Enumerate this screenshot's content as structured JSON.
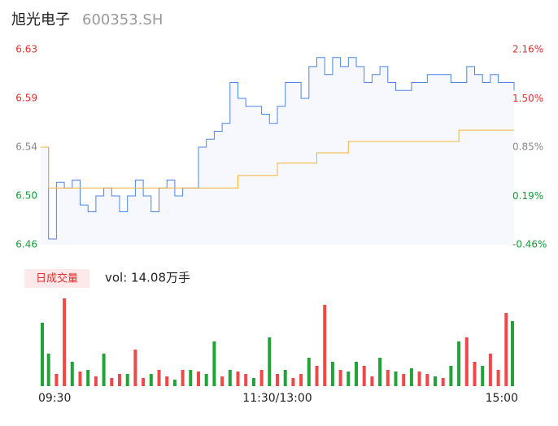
{
  "chart_data": {
    "type": "line",
    "title": "旭光电子",
    "subtitle": "600353.SH",
    "categories": [
      "09:30",
      null,
      null,
      null,
      null,
      null,
      null,
      null,
      null,
      null,
      null,
      null,
      null,
      null,
      null,
      null,
      null,
      null,
      null,
      null,
      null,
      null,
      null,
      null,
      null,
      null,
      null,
      null,
      null,
      null,
      "11:30/13:00",
      null,
      null,
      null,
      null,
      null,
      null,
      null,
      null,
      null,
      null,
      null,
      null,
      null,
      null,
      null,
      null,
      null,
      null,
      null,
      null,
      null,
      null,
      null,
      null,
      null,
      null,
      null,
      null,
      null,
      "15:00"
    ],
    "series": [
      {
        "color": "#4a86e8",
        "values": [
          6.541,
          6.46,
          6.51,
          6.505,
          6.512,
          6.49,
          6.484,
          6.498,
          6.505,
          6.498,
          6.484,
          6.498,
          6.512,
          6.498,
          6.484,
          6.505,
          6.512,
          6.498,
          6.505,
          6.505,
          6.541,
          6.548,
          6.555,
          6.562,
          6.598,
          6.584,
          6.577,
          6.577,
          6.57,
          6.562,
          6.577,
          6.598,
          6.598,
          6.584,
          6.612,
          6.62,
          6.605,
          6.62,
          6.612,
          6.62,
          6.612,
          6.598,
          6.605,
          6.612,
          6.598,
          6.591,
          6.591,
          6.598,
          6.598,
          6.605,
          6.605,
          6.605,
          6.598,
          6.598,
          6.612,
          6.605,
          6.598,
          6.605,
          6.598,
          6.598,
          6.591
        ]
      },
      {
        "color": "#f5b336",
        "values": [
          6.541,
          6.505,
          6.505,
          6.505,
          6.505,
          6.505,
          6.505,
          6.505,
          6.505,
          6.505,
          6.505,
          6.505,
          6.505,
          6.505,
          6.505,
          6.505,
          6.505,
          6.505,
          6.505,
          6.505,
          6.505,
          6.505,
          6.505,
          6.505,
          6.505,
          6.516,
          6.516,
          6.516,
          6.516,
          6.516,
          6.527,
          6.527,
          6.527,
          6.527,
          6.527,
          6.536,
          6.536,
          6.536,
          6.536,
          6.546,
          6.546,
          6.546,
          6.546,
          6.546,
          6.546,
          6.546,
          6.546,
          6.546,
          6.546,
          6.546,
          6.546,
          6.546,
          6.546,
          6.556,
          6.556,
          6.556,
          6.556,
          6.556,
          6.556,
          6.556,
          6.556
        ]
      }
    ],
    "ylim": [
      6.455,
      6.627
    ],
    "yticks": [
      {
        "value": 6.455,
        "label": "6.46"
      },
      {
        "value": 6.498,
        "label": "6.50"
      },
      {
        "value": 6.541,
        "label": "6.54"
      },
      {
        "value": 6.584,
        "label": "6.59"
      },
      {
        "value": 6.627,
        "label": "6.63"
      }
    ],
    "y2lim": [
      -0.46,
      2.16
    ],
    "y2ticks": [
      {
        "value": -0.46,
        "label": "-0.46%"
      },
      {
        "value": 0.19,
        "label": "0.19%"
      },
      {
        "value": 0.85,
        "label": "0.85%"
      },
      {
        "value": 1.5,
        "label": "1.50%"
      },
      {
        "value": 2.16,
        "label": "2.16%"
      }
    ],
    "tick_colors": [
      "#1a9a3a",
      "#1a9a3a",
      "#888888",
      "#e03030",
      "#e03030"
    ],
    "area_color": "#f6f8fd",
    "volume": {
      "label": "日成交量",
      "text": "vol: 14.08万手",
      "ylim": [
        0,
        110
      ],
      "up_color": "#f04848",
      "down_color": "#22a33a",
      "values": [
        78,
        40,
        15,
        108,
        30,
        18,
        20,
        12,
        40,
        10,
        15,
        15,
        45,
        10,
        15,
        20,
        12,
        8,
        20,
        20,
        18,
        15,
        55,
        12,
        20,
        18,
        15,
        10,
        20,
        60,
        15,
        20,
        10,
        15,
        35,
        25,
        100,
        30,
        20,
        18,
        30,
        25,
        12,
        35,
        20,
        18,
        15,
        22,
        18,
        15,
        12,
        10,
        25,
        55,
        60,
        30,
        25,
        40,
        20,
        90,
        80
      ],
      "directions": [
        "down",
        "down",
        "up",
        "up",
        "down",
        "up",
        "down",
        "up",
        "down",
        "up",
        "up",
        "down",
        "up",
        "up",
        "down",
        "up",
        "up",
        "down",
        "up",
        "down",
        "up",
        "down",
        "down",
        "up",
        "down",
        "up",
        "up",
        "down",
        "up",
        "down",
        "up",
        "down",
        "up",
        "up",
        "down",
        "up",
        "up",
        "down",
        "up",
        "down",
        "down",
        "up",
        "up",
        "down",
        "up",
        "down",
        "up",
        "down",
        "up",
        "up",
        "down",
        "up",
        "down",
        "down",
        "up",
        "up",
        "down",
        "up",
        "up",
        "up",
        "down"
      ]
    }
  }
}
